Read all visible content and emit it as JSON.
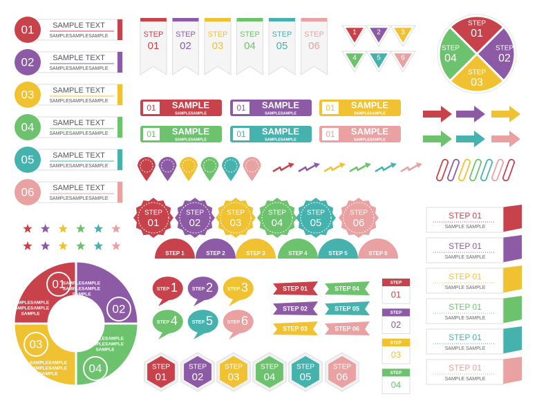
{
  "list_items": [
    {
      "number": "01",
      "title": "SAMPLE TEXT",
      "subtitle": "SAMPLESAMPLESAMPLE"
    },
    {
      "number": "02",
      "title": "SAMPLE TEXT",
      "subtitle": "SAMPLESAMPLESAMPLE"
    },
    {
      "number": "03",
      "title": "SAMPLE TEXT",
      "subtitle": "SAMPLESAMPLESAMPLE"
    },
    {
      "number": "04",
      "title": "SAMPLE TEXT",
      "subtitle": "SAMPLESAMPLESAMPLE"
    },
    {
      "number": "05",
      "title": "SAMPLE TEXT",
      "subtitle": "SAMPLESAMPLESAMPLE"
    },
    {
      "number": "06",
      "title": "SAMPLE TEXT",
      "subtitle": "SAMPLESAMPLESAMPLE"
    }
  ],
  "banners": [
    {
      "label": "STEP",
      "number": "01"
    },
    {
      "label": "STEP",
      "number": "02"
    },
    {
      "label": "STEP",
      "number": "03"
    },
    {
      "label": "STEP",
      "number": "04"
    },
    {
      "label": "STEP",
      "number": "05"
    },
    {
      "label": "STEP",
      "number": "06"
    }
  ],
  "triangles": [
    "1",
    "2",
    "3",
    "4",
    "5",
    "6"
  ],
  "quad_circle": [
    {
      "label": "STEP",
      "number": "01"
    },
    {
      "label": "STEP",
      "number": "02"
    },
    {
      "label": "STEP",
      "number": "03"
    },
    {
      "label": "STEP",
      "number": "04"
    }
  ],
  "bars": [
    {
      "number": "01",
      "title": "SAMPLE",
      "subtitle": "SAMPLESAMPLE"
    },
    {
      "number": "01",
      "title": "SAMPLE",
      "subtitle": "SAMPLESAMPLE"
    },
    {
      "number": "01",
      "title": "SAMPLE",
      "subtitle": "SAMPLESAMPLE"
    },
    {
      "number": "01",
      "title": "SAMPLE",
      "subtitle": "SAMPLESAMPLE"
    },
    {
      "number": "01",
      "title": "SAMPLE",
      "subtitle": "SAMPLESAMPLE"
    },
    {
      "number": "01",
      "title": "SAMPLE",
      "subtitle": "SAMPLESAMPLE"
    }
  ],
  "badges": [
    {
      "label": "STEP",
      "number": "01"
    },
    {
      "label": "STEP",
      "number": "02"
    },
    {
      "label": "STEP",
      "number": "03"
    },
    {
      "label": "STEP",
      "number": "04"
    },
    {
      "label": "STEP",
      "number": "05"
    },
    {
      "label": "STEP",
      "number": "06"
    }
  ],
  "semicircles": [
    "STEP 1",
    "STEP 2",
    "STEP 3",
    "STEP 4",
    "STEP 5",
    "STEP 6"
  ],
  "donut": [
    {
      "number": "01",
      "lines": [
        "SAMPLESAMPLE",
        "SAMPLESAMPLE",
        "SAMPLE"
      ]
    },
    {
      "number": "02",
      "lines": [
        "SAMPLESAMPLE",
        "SAMPLESAMPLE",
        "SAMPLE"
      ]
    },
    {
      "number": "03",
      "lines": [
        "SAMPLESAMPLE",
        "SAMPLESAMPLE",
        "SAMPLE"
      ]
    },
    {
      "number": "04",
      "lines": [
        "SAMPLESAMPLE",
        "SAMPLESAMPLE",
        "SAMPLE"
      ]
    }
  ],
  "bubbles": [
    {
      "label": "STEP",
      "number": "1"
    },
    {
      "label": "STEP",
      "number": "2"
    },
    {
      "label": "STEP",
      "number": "3"
    },
    {
      "label": "STEP",
      "number": "4"
    },
    {
      "label": "STEP",
      "number": "5"
    },
    {
      "label": "STEP",
      "number": "6"
    }
  ],
  "ribbons": [
    "STEP 01",
    "STEP 02",
    "STEP 03",
    "STEP 04",
    "STEP 05",
    "STEP 06"
  ],
  "calendars": [
    {
      "label": "STEP",
      "number": "01"
    },
    {
      "label": "STEP",
      "number": "02"
    },
    {
      "label": "STEP",
      "number": "03"
    },
    {
      "label": "STEP",
      "number": "04"
    }
  ],
  "hexagons": [
    {
      "label": "STEP",
      "number": "01"
    },
    {
      "label": "STEP",
      "number": "02"
    },
    {
      "label": "STEP",
      "number": "03"
    },
    {
      "label": "STEP",
      "number": "04"
    },
    {
      "label": "STEP",
      "number": "05"
    },
    {
      "label": "STEP",
      "number": "06"
    }
  ],
  "cards": [
    {
      "title": "STEP 01",
      "subtitle": "SAMPLE SAMPLE"
    },
    {
      "title": "STEP 01",
      "subtitle": "SAMPLE SAMPLE"
    },
    {
      "title": "STEP 01",
      "subtitle": "SAMPLE SAMPLE"
    },
    {
      "title": "STEP 01",
      "subtitle": "SAMPLE SAMPLE"
    },
    {
      "title": "STEP 01",
      "subtitle": "SAMPLE SAMPLE"
    },
    {
      "title": "STEP 01",
      "subtitle": "SAMPLE SAMPLE"
    }
  ]
}
